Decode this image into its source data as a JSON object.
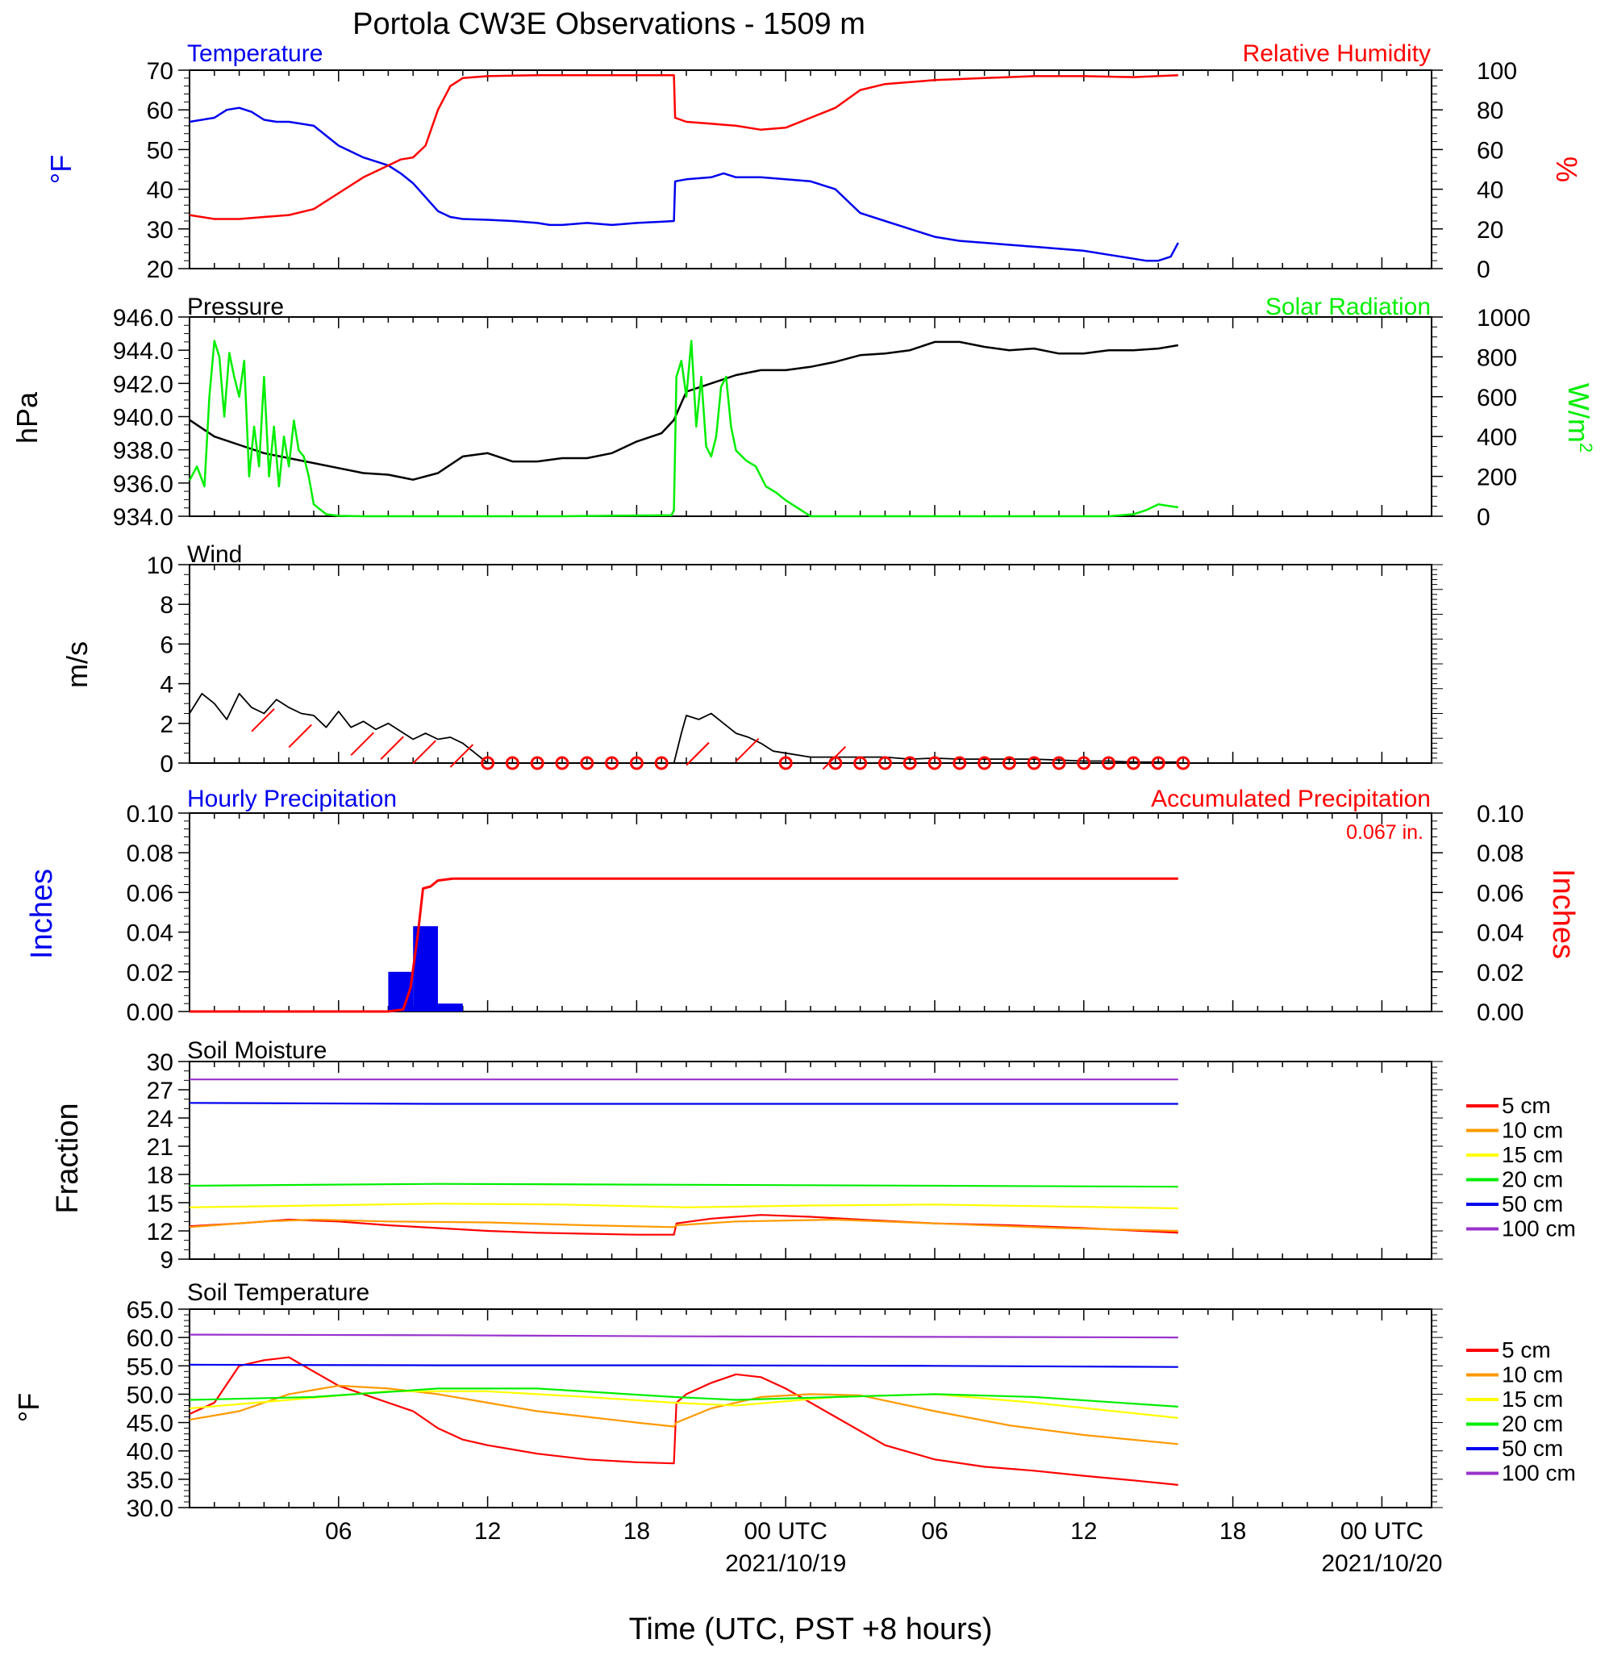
{
  "title": "Portola CW3E Observations - 1509 m",
  "xaxis": {
    "label": "Time (UTC, PST +8 hours)",
    "ticks": [
      {
        "h": 6,
        "label": "06"
      },
      {
        "h": 12,
        "label": "12"
      },
      {
        "h": 18,
        "label": "18"
      },
      {
        "h": 24,
        "label": "00 UTC",
        "date": "2021/10/19"
      },
      {
        "h": 30,
        "label": "06"
      },
      {
        "h": 36,
        "label": "12"
      },
      {
        "h": 42,
        "label": "18"
      },
      {
        "h": 48,
        "label": "00 UTC",
        "date": "2021/10/20"
      }
    ]
  },
  "legend_depths": [
    "5 cm",
    "10 cm",
    "15 cm",
    "20 cm",
    "50 cm",
    "100 cm"
  ],
  "colors": {
    "red": "#ff0000",
    "orange": "#ff9900",
    "yellow": "#ffff00",
    "green": "#00ee00",
    "blue": "#0000ee",
    "purple": "#9933cc",
    "black": "#000000"
  },
  "chart_data": [
    {
      "panel": "temp_rh",
      "type": "line",
      "title_left": "Temperature",
      "title_right": "Relative Humidity",
      "ylabel_left": "°F",
      "ylabel_right": "%",
      "ylim_left": [
        20,
        70
      ],
      "ylim_right": [
        0,
        100
      ],
      "yticks_left": [
        "20",
        "30",
        "40",
        "50",
        "60",
        "70"
      ],
      "yticks_right": [
        "0",
        "20",
        "40",
        "60",
        "80",
        "100"
      ],
      "series": [
        {
          "name": "Temperature",
          "color": "#0000ee",
          "axis": "left",
          "x": [
            0,
            1,
            1.5,
            2,
            2.5,
            3,
            3.5,
            4,
            5,
            6,
            7,
            8,
            8.5,
            9,
            9.5,
            10,
            10.5,
            11,
            12,
            13,
            14,
            14.5,
            15,
            16,
            17,
            18,
            19,
            19.5,
            19.55,
            20,
            21,
            21.5,
            22,
            23,
            24,
            25,
            26,
            27,
            28,
            29,
            30,
            31,
            32,
            33,
            34,
            35,
            36,
            37,
            38,
            38.5,
            39,
            39.5,
            39.8
          ],
          "y": [
            57,
            58,
            60,
            60.5,
            59.5,
            57.5,
            57,
            57,
            56,
            51,
            48,
            46,
            44,
            41.5,
            38,
            34.5,
            33,
            32.5,
            32.3,
            32,
            31.5,
            31,
            31,
            31.5,
            31,
            31.5,
            31.8,
            32,
            42,
            42.5,
            43,
            44,
            43,
            43,
            42.5,
            42,
            40,
            34,
            32,
            30,
            28,
            27,
            26.5,
            26,
            25.5,
            25,
            24.5,
            23.5,
            22.5,
            22,
            22,
            23,
            26.5
          ]
        },
        {
          "name": "Relative Humidity",
          "color": "#ff0000",
          "axis": "right",
          "x": [
            0,
            1,
            2,
            3,
            4,
            5,
            6,
            7,
            8,
            8.5,
            9,
            9.5,
            10,
            10.5,
            11,
            12,
            14,
            16,
            18,
            19.5,
            19.55,
            20,
            21,
            22,
            23,
            24,
            25,
            26,
            27,
            28,
            30,
            32,
            34,
            36,
            38,
            39.8
          ],
          "y": [
            27,
            25,
            25,
            26,
            27,
            30,
            38,
            46,
            52,
            55,
            56,
            62,
            80,
            92,
            96,
            97,
            97.5,
            97.5,
            97.5,
            97.5,
            76,
            74,
            73,
            72,
            70,
            71,
            76,
            81,
            90,
            93,
            95,
            96,
            97,
            97,
            96.5,
            97.5
          ]
        }
      ]
    },
    {
      "panel": "pressure_solar",
      "type": "line",
      "title_left": "Pressure",
      "title_right": "Solar Radiation",
      "ylabel_left": "hPa",
      "ylabel_right": "W/m2",
      "ylim_left": [
        934,
        946
      ],
      "ylim_right": [
        0,
        1000
      ],
      "yticks_left": [
        "934.0",
        "936.0",
        "938.0",
        "940.0",
        "942.0",
        "944.0",
        "946.0"
      ],
      "yticks_right": [
        "0",
        "200",
        "400",
        "600",
        "800",
        "1000"
      ],
      "series": [
        {
          "name": "Pressure",
          "color": "#000000",
          "axis": "left",
          "x": [
            0,
            1,
            2,
            3,
            4,
            5,
            6,
            7,
            8,
            9,
            10,
            11,
            12,
            13,
            14,
            15,
            16,
            17,
            18,
            19,
            19.5,
            20,
            21,
            22,
            23,
            24,
            25,
            26,
            27,
            28,
            29,
            30,
            31,
            32,
            33,
            34,
            35,
            36,
            37,
            38,
            39,
            39.8
          ],
          "y": [
            939.8,
            938.8,
            938.3,
            937.8,
            937.5,
            937.2,
            936.9,
            936.6,
            936.5,
            936.2,
            936.6,
            937.6,
            937.8,
            937.3,
            937.3,
            937.5,
            937.5,
            937.8,
            938.5,
            939,
            939.8,
            941.5,
            942,
            942.5,
            942.8,
            942.8,
            943,
            943.3,
            943.7,
            943.8,
            944,
            944.5,
            944.5,
            944.2,
            944,
            944.1,
            943.8,
            943.8,
            944,
            944,
            944.1,
            944.3
          ]
        },
        {
          "name": "Solar Radiation",
          "color": "#00ee00",
          "axis": "right",
          "x": [
            0,
            0.3,
            0.6,
            0.8,
            1,
            1.2,
            1.4,
            1.6,
            1.8,
            2,
            2.2,
            2.4,
            2.6,
            2.8,
            3,
            3.2,
            3.4,
            3.6,
            3.8,
            4,
            4.2,
            4.4,
            4.6,
            4.8,
            5,
            5.5,
            6,
            7,
            10,
            15,
            19.4,
            19.5,
            19.6,
            19.8,
            20,
            20.2,
            20.4,
            20.6,
            20.8,
            21,
            21.2,
            21.4,
            21.6,
            21.8,
            22,
            22.4,
            22.8,
            23.2,
            23.6,
            24,
            24.5,
            25,
            26,
            30,
            35,
            37,
            38,
            38.5,
            39,
            39.5,
            39.8
          ],
          "y": [
            180,
            250,
            150,
            600,
            880,
            800,
            500,
            820,
            700,
            600,
            780,
            200,
            450,
            250,
            700,
            200,
            450,
            150,
            400,
            250,
            480,
            330,
            300,
            200,
            60,
            10,
            2,
            0,
            0,
            0,
            5,
            30,
            700,
            780,
            600,
            880,
            450,
            700,
            350,
            300,
            400,
            650,
            700,
            450,
            330,
            280,
            250,
            150,
            120,
            80,
            40,
            0,
            0,
            0,
            0,
            0,
            10,
            30,
            60,
            50,
            45
          ]
        }
      ]
    },
    {
      "panel": "wind",
      "type": "line",
      "title": "Wind",
      "ylabel": "m/s",
      "ylim": [
        0,
        10
      ],
      "yticks": [
        "0",
        "2",
        "4",
        "6",
        "8",
        "10"
      ],
      "series": [
        {
          "name": "Wind",
          "color": "#000000",
          "x": [
            0,
            0.5,
            1,
            1.5,
            2,
            2.5,
            3,
            3.5,
            4,
            4.5,
            5,
            5.5,
            6,
            6.5,
            7,
            7.5,
            8,
            8.5,
            9,
            9.5,
            10,
            10.5,
            11,
            11.5,
            12,
            19.5,
            19.8,
            20,
            20.5,
            21,
            21.5,
            22,
            22.5,
            23,
            23.5,
            24,
            25,
            26,
            27,
            28,
            29,
            30,
            31,
            32,
            33,
            34,
            35,
            36,
            37,
            38,
            39,
            39.8
          ],
          "y": [
            2.5,
            3.5,
            3,
            2.2,
            3.5,
            2.8,
            2.5,
            3.2,
            2.8,
            2.5,
            2.4,
            1.8,
            2.6,
            1.8,
            2.1,
            1.7,
            2,
            1.6,
            1.2,
            1.5,
            1.2,
            1.3,
            1,
            0.5,
            0,
            0,
            1.5,
            2.4,
            2.2,
            2.5,
            2,
            1.5,
            1.3,
            1,
            0.6,
            0.5,
            0.3,
            0.3,
            0.3,
            0.3,
            0.2,
            0.25,
            0.2,
            0.2,
            0.2,
            0.2,
            0.15,
            0.1,
            0.1,
            0.05,
            0.05,
            0.05
          ]
        }
      ],
      "calm_markers_hours": [
        11,
        12,
        13,
        14,
        15,
        16,
        17,
        18,
        23,
        25,
        26,
        27,
        28,
        29,
        30,
        31,
        32,
        33,
        34,
        35,
        36,
        37,
        38,
        39
      ]
    },
    {
      "panel": "precip",
      "type": "bar",
      "title_left": "Hourly Precipitation",
      "title_right": "Accumulated Precipitation",
      "annotation": "0.067 in.",
      "ylabel_left": "Inches",
      "ylabel_right": "Inches",
      "ylim": [
        0,
        0.1
      ],
      "yticks": [
        "0.00",
        "0.02",
        "0.04",
        "0.06",
        "0.08",
        "0.10"
      ],
      "bars": {
        "name": "Hourly Precipitation",
        "color": "#0000ee",
        "x": [
          8,
          9,
          10
        ],
        "values": [
          0.02,
          0.043,
          0.004
        ]
      },
      "series": [
        {
          "name": "Accumulated Precipitation",
          "color": "#ff0000",
          "x": [
            0,
            8,
            8.6,
            8.9,
            9.2,
            9.4,
            9.7,
            10,
            10.6,
            11,
            39.8
          ],
          "y": [
            0,
            0,
            0.001,
            0.012,
            0.04,
            0.062,
            0.063,
            0.066,
            0.067,
            0.067,
            0.067
          ]
        }
      ]
    },
    {
      "panel": "soil_moisture",
      "type": "line",
      "title": "Soil Moisture",
      "ylabel": "Fraction",
      "ylim": [
        9,
        30
      ],
      "yticks": [
        "9",
        "12",
        "15",
        "18",
        "21",
        "24",
        "27",
        "30"
      ],
      "series": [
        {
          "name": "5 cm",
          "color": "#ff0000",
          "x": [
            0,
            2,
            4,
            6,
            8,
            10,
            12,
            14,
            16,
            18,
            19.5,
            19.6,
            21,
            23,
            25,
            27,
            30,
            33,
            36,
            39.8
          ],
          "y": [
            12.5,
            12.8,
            13.2,
            13,
            12.6,
            12.3,
            12,
            11.8,
            11.7,
            11.6,
            11.6,
            12.8,
            13.3,
            13.7,
            13.5,
            13.2,
            12.8,
            12.6,
            12.3,
            11.8
          ]
        },
        {
          "name": "10 cm",
          "color": "#ff9900",
          "x": [
            0,
            3,
            5,
            8,
            12,
            16,
            19.5,
            19.6,
            22,
            26,
            30,
            35,
            39.8
          ],
          "y": [
            12.4,
            13,
            13.2,
            13,
            12.9,
            12.6,
            12.4,
            12.6,
            13,
            13.2,
            12.8,
            12.3,
            12
          ]
        },
        {
          "name": "15 cm",
          "color": "#ffff00",
          "x": [
            0,
            5,
            10,
            15,
            20,
            25,
            30,
            35,
            39.8
          ],
          "y": [
            14.5,
            14.7,
            14.9,
            14.8,
            14.5,
            14.7,
            14.8,
            14.6,
            14.4
          ]
        },
        {
          "name": "20 cm",
          "color": "#00ee00",
          "x": [
            0,
            10,
            20,
            30,
            39.8
          ],
          "y": [
            16.8,
            17,
            16.9,
            16.8,
            16.7
          ]
        },
        {
          "name": "50 cm",
          "color": "#0000ee",
          "x": [
            0,
            10,
            20,
            30,
            39.8
          ],
          "y": [
            25.6,
            25.5,
            25.5,
            25.5,
            25.5
          ]
        },
        {
          "name": "100 cm",
          "color": "#9933cc",
          "x": [
            0,
            10,
            20,
            30,
            39.8
          ],
          "y": [
            28.1,
            28.1,
            28.1,
            28.1,
            28.1
          ]
        }
      ]
    },
    {
      "panel": "soil_temp",
      "type": "line",
      "title": "Soil Temperature",
      "ylabel": "°F",
      "ylim": [
        30,
        65
      ],
      "yticks": [
        "30.0",
        "35.0",
        "40.0",
        "45.0",
        "50.0",
        "55.0",
        "60.0",
        "65.0"
      ],
      "series": [
        {
          "name": "5 cm",
          "color": "#ff0000",
          "x": [
            0,
            1,
            2,
            3,
            4,
            5,
            6,
            7,
            8,
            9,
            10,
            11,
            12,
            14,
            16,
            18,
            19.5,
            19.6,
            20,
            21,
            22,
            23,
            24,
            26,
            28,
            30,
            32,
            34,
            36,
            38,
            39.8
          ],
          "y": [
            46.5,
            48.5,
            55,
            56,
            56.5,
            54,
            51.5,
            50,
            48.5,
            47,
            44,
            42,
            41,
            39.5,
            38.5,
            38,
            37.8,
            48.5,
            50,
            52,
            53.5,
            53,
            51,
            46,
            41,
            38.5,
            37.2,
            36.5,
            35.6,
            34.8,
            34
          ]
        },
        {
          "name": "10 cm",
          "color": "#ff9900",
          "x": [
            0,
            2,
            4,
            6,
            8,
            10,
            12,
            14,
            16,
            18,
            19.5,
            19.6,
            21,
            23,
            25,
            27,
            30,
            33,
            36,
            39.8
          ],
          "y": [
            45.5,
            47,
            50,
            51.5,
            51,
            50,
            48.5,
            47,
            46,
            45,
            44.3,
            45,
            47.5,
            49.5,
            50,
            49.8,
            47,
            44.5,
            42.8,
            41.2
          ]
        },
        {
          "name": "15 cm",
          "color": "#ffff00",
          "x": [
            0,
            4,
            8,
            12,
            16,
            19.5,
            22,
            26,
            30,
            34,
            39.8
          ],
          "y": [
            47.5,
            49,
            50.5,
            50.5,
            49.5,
            48.5,
            48,
            49.5,
            50,
            48.5,
            45.8
          ]
        },
        {
          "name": "20 cm",
          "color": "#00ee00",
          "x": [
            0,
            5,
            10,
            14,
            19.5,
            22,
            26,
            30,
            34,
            39.8
          ],
          "y": [
            49,
            49.5,
            51,
            51,
            49.5,
            49,
            49.5,
            50,
            49.5,
            47.8
          ]
        },
        {
          "name": "50 cm",
          "color": "#0000ee",
          "x": [
            0,
            10,
            20,
            30,
            39.8
          ],
          "y": [
            55.2,
            55.1,
            55.1,
            55,
            54.8
          ]
        },
        {
          "name": "100 cm",
          "color": "#9933cc",
          "x": [
            0,
            10,
            20,
            30,
            39.8
          ],
          "y": [
            60.5,
            60.4,
            60.2,
            60.1,
            60
          ]
        }
      ]
    }
  ]
}
